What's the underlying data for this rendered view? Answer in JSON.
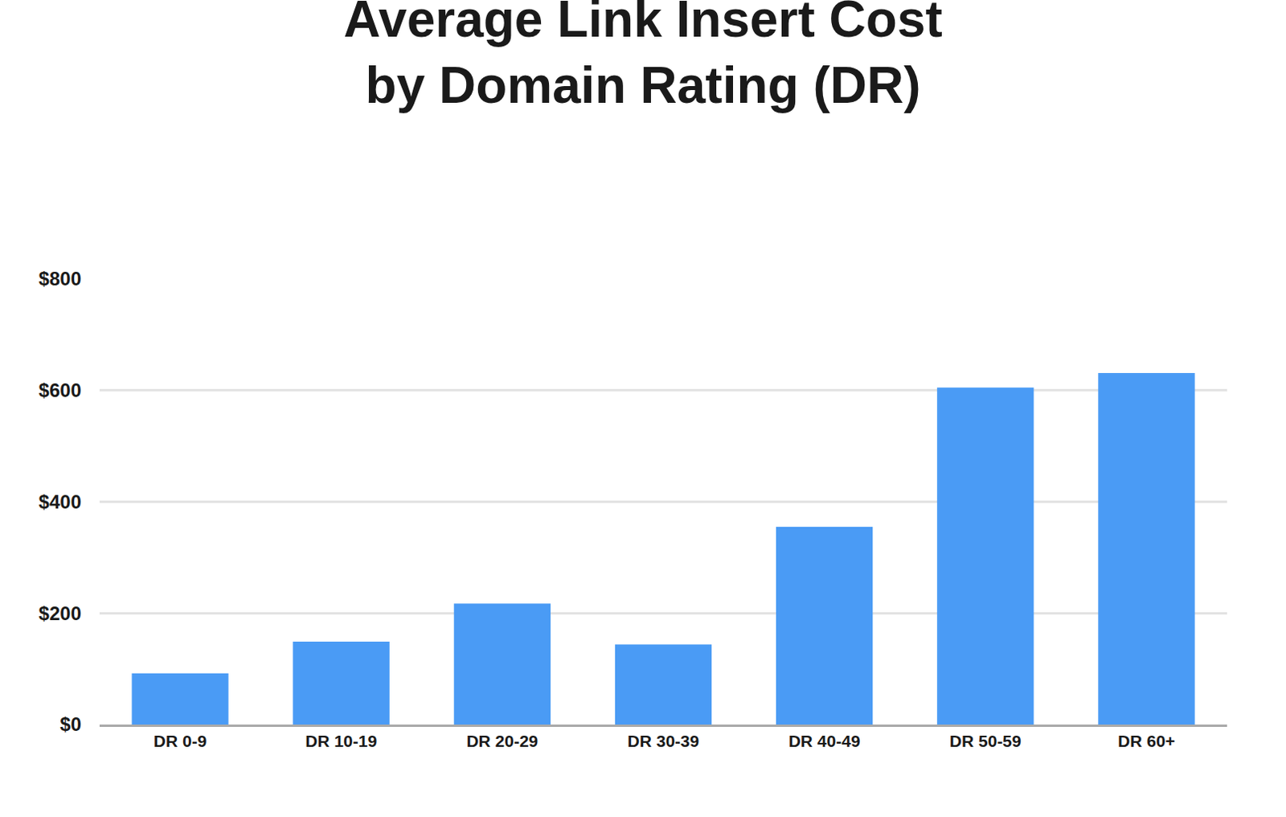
{
  "chart_data": {
    "type": "bar",
    "title": "Average Link Insert Cost\nby Domain Rating (DR)",
    "categories": [
      "DR 0-9",
      "DR 10-19",
      "DR 20-29",
      "DR 30-39",
      "DR 40-49",
      "DR 50-59",
      "DR 60+"
    ],
    "values": [
      92,
      149,
      217,
      144,
      355,
      605,
      631
    ],
    "color": "#4a9bf5",
    "ylim": [
      0,
      800
    ],
    "yticks": [
      {
        "value": 0,
        "label": "$0"
      },
      {
        "value": 200,
        "label": "$200"
      },
      {
        "value": 400,
        "label": "$400"
      },
      {
        "value": 600,
        "label": "$600"
      },
      {
        "value": 800,
        "label": "$800"
      }
    ],
    "grid": true
  }
}
